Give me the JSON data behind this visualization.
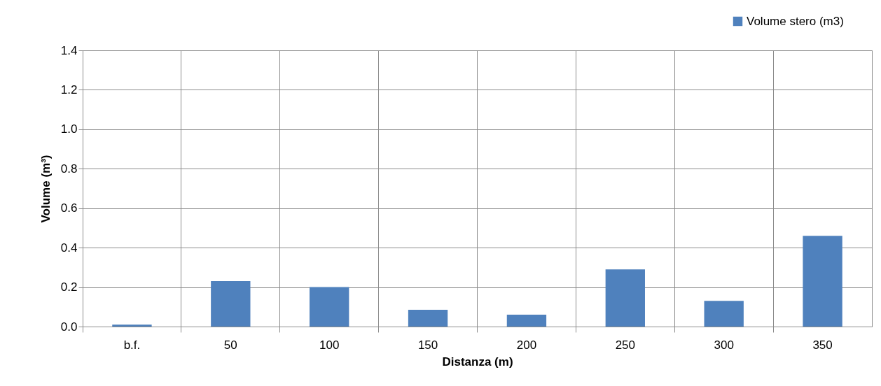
{
  "chart_data": {
    "type": "bar",
    "xlabel": "Distanza (m)",
    "ylabel": "Volume (m³)",
    "categories": [
      "b.f.",
      "50",
      "100",
      "150",
      "200",
      "250",
      "300",
      "350"
    ],
    "series": [
      {
        "name": "Volume stero (m3)",
        "color": "#4f81bd",
        "values": [
          0.01,
          0.23,
          0.2,
          0.085,
          0.06,
          0.29,
          0.13,
          0.46
        ]
      }
    ],
    "ylim": [
      0,
      1.4
    ],
    "yticks": [
      {
        "value": 0,
        "label": "0.0"
      },
      {
        "value": 0.2,
        "label": "0.2"
      },
      {
        "value": 0.4,
        "label": "0.4"
      },
      {
        "value": 0.6,
        "label": "0.6"
      },
      {
        "value": 0.8,
        "label": "0.8"
      },
      {
        "value": 1.0,
        "label": "1.0"
      },
      {
        "value": 1.2,
        "label": "1.2"
      },
      {
        "value": 1.4,
        "label": "1.4"
      }
    ],
    "grid": true,
    "legend": "top right"
  }
}
